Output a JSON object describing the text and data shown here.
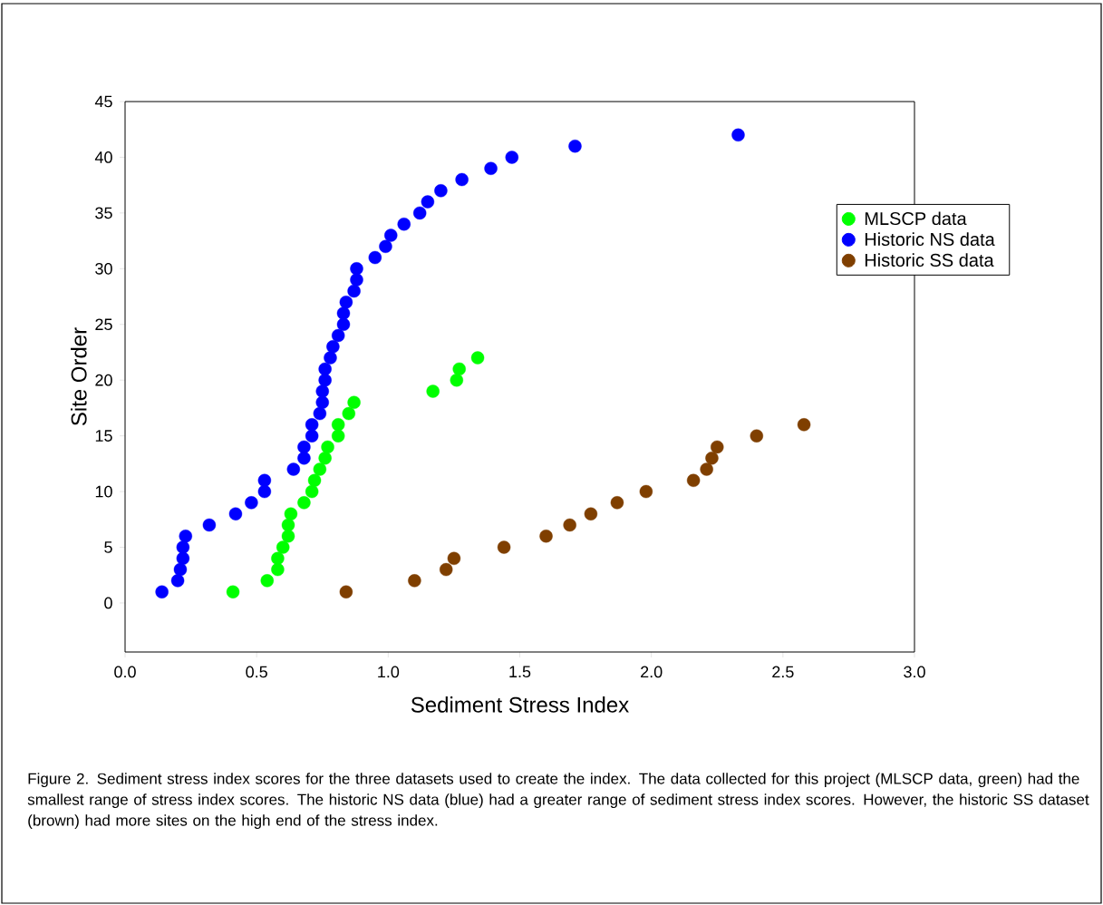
{
  "chart_data": {
    "type": "scatter",
    "xlabel": "Sediment Stress Index",
    "ylabel": "Site Order",
    "xlim": [
      0,
      3
    ],
    "ylim": [
      -4.4,
      45
    ],
    "xticks": [
      {
        "value": 0,
        "label": "0.0"
      },
      {
        "value": 0.5,
        "label": "0.5"
      },
      {
        "value": 1,
        "label": "1.0"
      },
      {
        "value": 1.5,
        "label": "1.5"
      },
      {
        "value": 2,
        "label": "2.0"
      },
      {
        "value": 2.5,
        "label": "2.5"
      },
      {
        "value": 3,
        "label": "3.0"
      }
    ],
    "yticks": [
      0,
      5,
      10,
      15,
      20,
      25,
      30,
      35,
      40,
      45
    ],
    "marker": "circle",
    "legend": "right",
    "series": [
      {
        "name": "MLSCP data",
        "color": "#00ff00",
        "x": [
          0.41,
          0.54,
          0.58,
          0.58,
          0.6,
          0.62,
          0.62,
          0.63,
          0.68,
          0.71,
          0.72,
          0.74,
          0.76,
          0.77,
          0.81,
          0.81,
          0.85,
          0.87,
          1.17,
          1.26,
          1.27,
          1.34
        ],
        "values": [
          1,
          2,
          3,
          4,
          5,
          6,
          7,
          8,
          9,
          10,
          11,
          12,
          13,
          14,
          15,
          16,
          17,
          18,
          19,
          20,
          21,
          22
        ]
      },
      {
        "name": "Historic NS data",
        "color": "#0000ff",
        "x": [
          0.14,
          0.2,
          0.21,
          0.22,
          0.22,
          0.23,
          0.32,
          0.42,
          0.48,
          0.53,
          0.53,
          0.64,
          0.68,
          0.68,
          0.71,
          0.71,
          0.74,
          0.75,
          0.75,
          0.76,
          0.76,
          0.78,
          0.79,
          0.81,
          0.83,
          0.83,
          0.84,
          0.87,
          0.88,
          0.88,
          0.95,
          0.99,
          1.01,
          1.06,
          1.12,
          1.15,
          1.2,
          1.28,
          1.39,
          1.47,
          1.71,
          2.33
        ],
        "values": [
          1,
          2,
          3,
          4,
          5,
          6,
          7,
          8,
          9,
          10,
          11,
          12,
          13,
          14,
          15,
          16,
          17,
          18,
          19,
          20,
          21,
          22,
          23,
          24,
          25,
          26,
          27,
          28,
          29,
          30,
          31,
          32,
          33,
          34,
          35,
          36,
          37,
          38,
          39,
          40,
          41,
          42
        ]
      },
      {
        "name": "Historic SS data",
        "color": "#7f3f00",
        "x": [
          0.84,
          1.1,
          1.22,
          1.25,
          1.44,
          1.6,
          1.69,
          1.77,
          1.87,
          1.98,
          2.16,
          2.21,
          2.23,
          2.25,
          2.4,
          2.58
        ],
        "values": [
          1,
          2,
          3,
          4,
          5,
          6,
          7,
          8,
          9,
          10,
          11,
          12,
          13,
          14,
          15,
          16
        ]
      }
    ],
    "annotations": [
      "Figure 2. Sediment stress index scores for the three datasets used to create the index. The data collected for this project (MLSCP data, green) had the smallest range of stress index scores. The historic NS data (blue) had a greater range of sediment stress index scores. However, the historic SS dataset (brown) had more sites on the high end of the stress index."
    ]
  }
}
